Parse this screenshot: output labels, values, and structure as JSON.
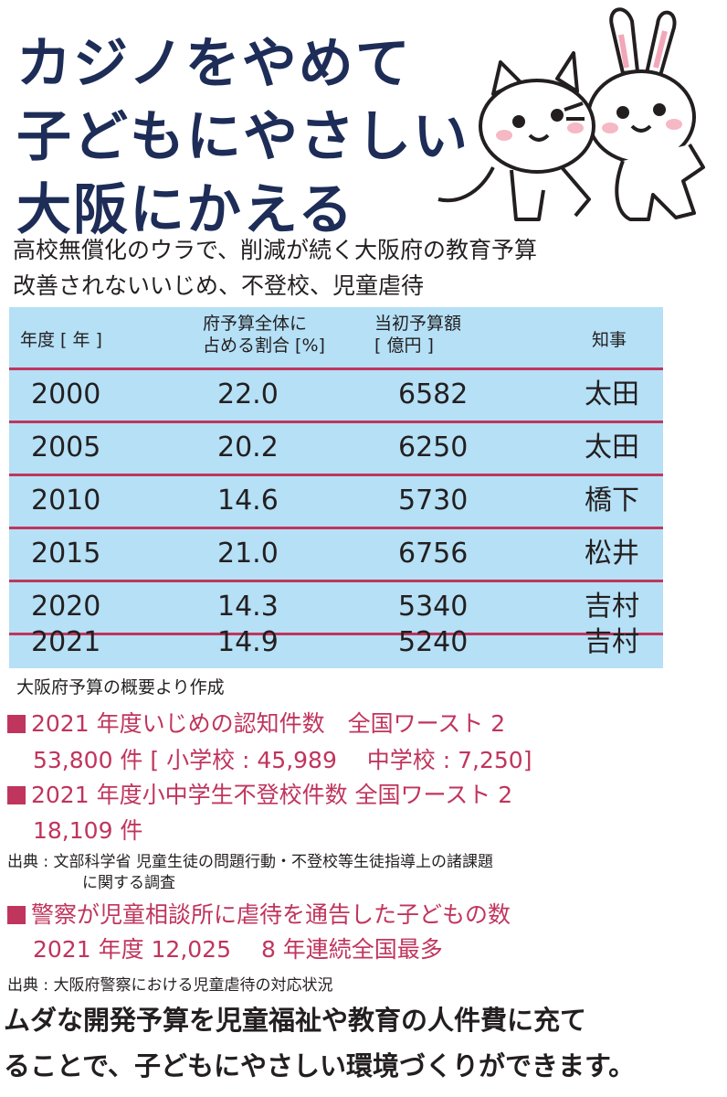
{
  "headline": {
    "line1": "カジノをやめて",
    "line2": "子どもにやさしい",
    "line3": "大阪にかえる"
  },
  "subheads": [
    "高校無償化のウラで、削減が続く大阪府の教育予算",
    "改善されないいじめ、不登校、児童虐待"
  ],
  "table": {
    "headers": {
      "year": "年度 [ 年 ]",
      "ratio_line1": "府予算全体に",
      "ratio_line2": "占める割合 [%]",
      "budget_line1": "当初予算額",
      "budget_line2": "[ 億円 ]",
      "governor": "知事"
    },
    "rows": [
      {
        "year": "2000",
        "ratio": "22.0",
        "budget": "6582",
        "governor": "太田"
      },
      {
        "year": "2005",
        "ratio": "20.2",
        "budget": "6250",
        "governor": "太田"
      },
      {
        "year": "2010",
        "ratio": "14.6",
        "budget": "5730",
        "governor": "橋下"
      },
      {
        "year": "2015",
        "ratio": "21.0",
        "budget": "6756",
        "governor": "松井"
      },
      {
        "year": "2020",
        "ratio": "14.3",
        "budget": "5340",
        "governor": "吉村"
      },
      {
        "year": "2021",
        "ratio": "14.9",
        "budget": "5240",
        "governor": "吉村"
      }
    ],
    "source": "大阪府予算の概要より作成"
  },
  "stats": {
    "bullying_title": "2021 年度いじめの認知件数　全国ワースト 2",
    "bullying_detail": "53,800 件 [ 小学校 : 45,989　 中学校 : 7,250]",
    "truancy_title": "2021 年度小中学生不登校件数 全国ワースト 2",
    "truancy_detail": "18,109 件",
    "cite1_line1": "出典 : 文部科学省 児童生徒の問題行動・不登校等生徒指導上の諸課題",
    "cite1_line2": "に関する調査",
    "abuse_title": "警察が児童相談所に虐待を通告した子どもの数",
    "abuse_detail": "2021 年度 12,025　 8 年連続全国最多",
    "cite2": "出典 : 大阪府警察における児童虐待の対応状況"
  },
  "closing": {
    "line1": "ムダな開発予算を児童福祉や教育の人件費に充て",
    "line2": "ることで、子どもにやさしい環境づくりができます。"
  },
  "colors": {
    "headline": "#1d2d57",
    "accent": "#c0355d",
    "table_bg": "#b5e0f6"
  }
}
